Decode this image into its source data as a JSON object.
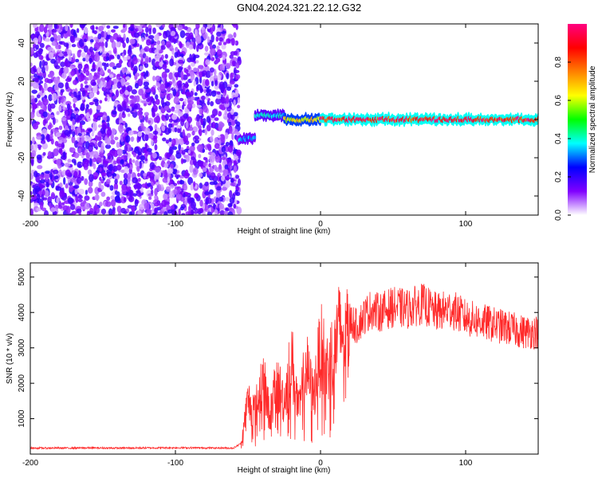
{
  "page_title": "GN04.2024.321.22.12.G32",
  "chart_data": [
    {
      "type": "heatmap",
      "title": "GN04.2024.321.22.12.G32",
      "xlabel": "Height of straight line (km)",
      "ylabel": "Frequency (Hz)",
      "xlim": [
        -200,
        150
      ],
      "ylim": [
        -50,
        50
      ],
      "xticks": [
        -200,
        -100,
        0,
        100
      ],
      "yticks": [
        -40,
        -20,
        0,
        20,
        40
      ],
      "colorbar": {
        "label": "Normalized spectral amplitude",
        "range": [
          0,
          1
        ],
        "ticks": [
          0.0,
          0.2,
          0.4,
          0.6,
          0.8
        ],
        "colors": [
          "#ffffff",
          "#8000ff",
          "#0000ff",
          "#00ffff",
          "#00ff00",
          "#ffff00",
          "#ff8000",
          "#ff0000",
          "#ff0080"
        ]
      },
      "regions": [
        {
          "x": [
            -200,
            -56
          ],
          "freq": [
            -50,
            50
          ],
          "description": "noise",
          "amplitude": 0.1
        },
        {
          "x": [
            -56,
            -45
          ],
          "freq_center": -10,
          "amplitude": 0.35
        },
        {
          "x": [
            -45,
            -25
          ],
          "freq_center": 2,
          "amplitude": 0.4
        },
        {
          "x": [
            -25,
            0
          ],
          "freq_center": 0,
          "amplitude": 0.7
        },
        {
          "x": [
            0,
            150
          ],
          "freq_center": 0,
          "amplitude": 0.95
        }
      ],
      "grid": false
    },
    {
      "type": "line",
      "xlabel": "Height of straight line (km)",
      "ylabel": "SNR (10 * v/v)",
      "xlim": [
        -200,
        150
      ],
      "ylim": [
        0,
        5400
      ],
      "xticks": [
        -200,
        -100,
        0,
        100
      ],
      "yticks": [
        1000,
        2000,
        3000,
        4000,
        5000
      ],
      "color": "#ff2a2a",
      "x": [
        -200,
        -180,
        -160,
        -140,
        -120,
        -100,
        -80,
        -60,
        -55,
        -50,
        -45,
        -40,
        -35,
        -30,
        -25,
        -20,
        -15,
        -10,
        -5,
        0,
        5,
        10,
        15,
        20,
        25,
        30,
        35,
        40,
        50,
        60,
        70,
        80,
        90,
        100,
        110,
        120,
        130,
        140,
        150
      ],
      "values": [
        170,
        170,
        175,
        170,
        175,
        180,
        175,
        170,
        300,
        1500,
        1200,
        2200,
        1100,
        2000,
        1500,
        2700,
        1200,
        2500,
        1600,
        3000,
        2400,
        3200,
        3500,
        3800,
        3600,
        3900,
        4100,
        4000,
        4150,
        4100,
        4250,
        4000,
        4100,
        3850,
        3750,
        3650,
        3550,
        3450,
        3450
      ],
      "grid": false
    }
  ]
}
